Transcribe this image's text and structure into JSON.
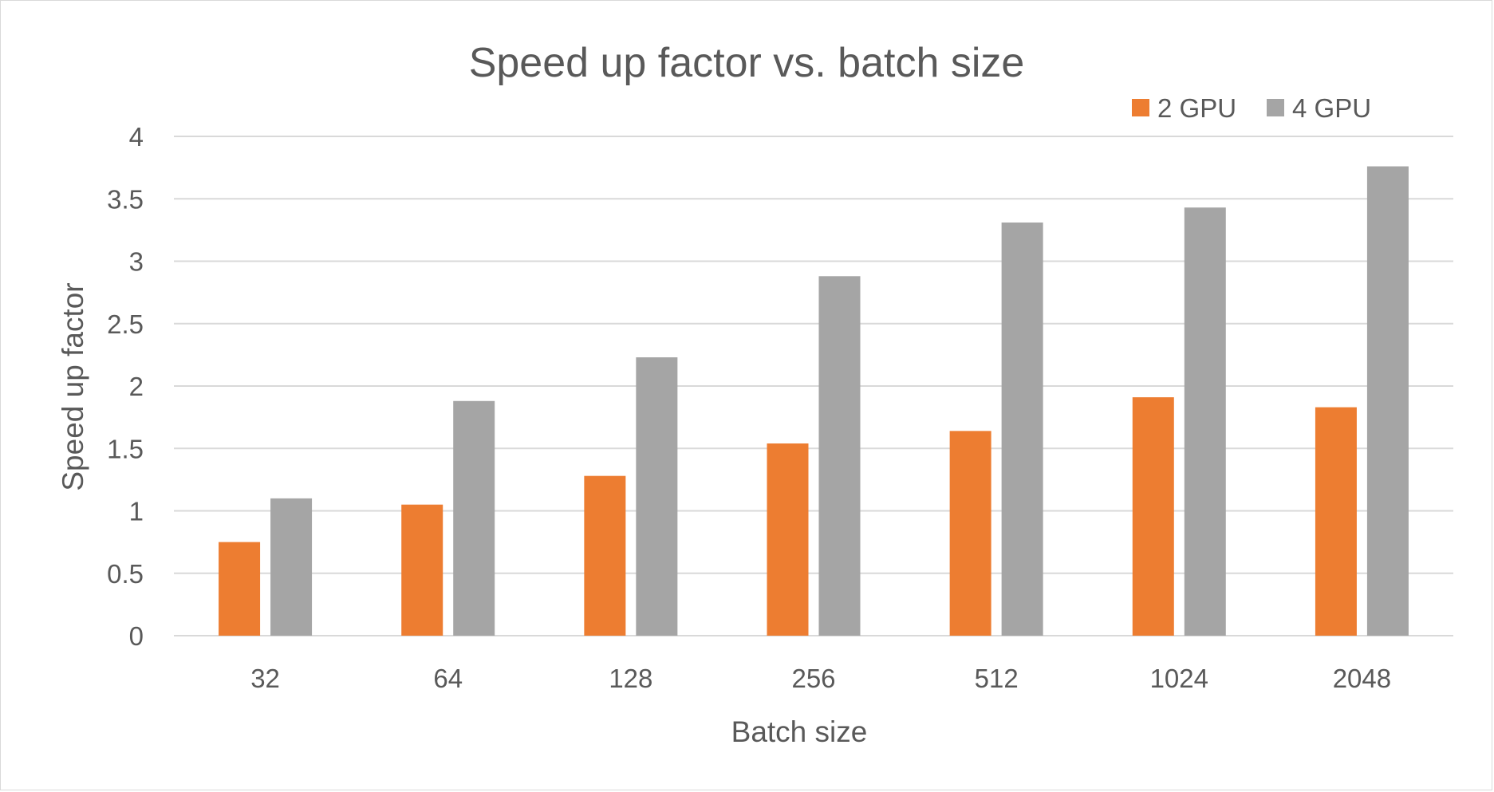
{
  "chart_data": {
    "type": "bar",
    "title": "Speed up factor vs. batch size",
    "xlabel": "Batch size",
    "ylabel": "Speed up factor",
    "categories": [
      "32",
      "64",
      "128",
      "256",
      "512",
      "1024",
      "2048"
    ],
    "series": [
      {
        "name": "2 GPU",
        "color": "#ED7D31",
        "values": [
          0.75,
          1.05,
          1.28,
          1.54,
          1.64,
          1.91,
          1.83
        ]
      },
      {
        "name": "4 GPU",
        "color": "#A5A5A5",
        "values": [
          1.1,
          1.88,
          2.23,
          2.88,
          3.31,
          3.43,
          3.76
        ]
      }
    ],
    "ylim": [
      0,
      4
    ],
    "yticks": [
      "0",
      "0.5",
      "1",
      "1.5",
      "2",
      "2.5",
      "3",
      "3.5",
      "4"
    ],
    "grid": true,
    "legend_position": "top-right"
  }
}
